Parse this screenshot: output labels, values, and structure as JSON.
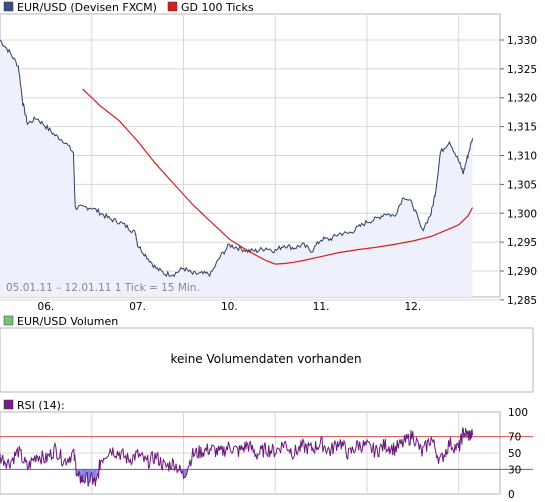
{
  "colors": {
    "price_line": "#2d3f63",
    "price_fill": "#eef0fb",
    "ma_line": "#d42020",
    "rsi_line": "#6a1a7a",
    "rsi_70": "#d85050",
    "rsi_30": "#5a5ad8",
    "rsi_low_fill": "#7a7ae8",
    "grid": "#d8d8d8",
    "frame": "#b5b5b5",
    "volume_swatch": "#7ac27a",
    "rsi_swatch": "#7a1a8a"
  },
  "chart_data": [
    {
      "type": "line",
      "legend": [
        {
          "label": "EUR/USD (Devisen FXCM)",
          "swatch": "#3b4e80"
        },
        {
          "label": "GD 100 Ticks",
          "swatch": "#d42020"
        }
      ],
      "note": "05.01.11 – 12.01.11   1 Tick = 15 Min.",
      "x_tick_labels": [
        "06.",
        "07.",
        "10.",
        "11.",
        "12."
      ],
      "x_tick_positions": [
        0.5,
        1.5,
        2.5,
        3.5,
        4.5
      ],
      "x_range": [
        0,
        5.45
      ],
      "y_range": [
        1.2855,
        1.3345
      ],
      "y_ticks": [
        1.285,
        1.29,
        1.295,
        1.3,
        1.305,
        1.31,
        1.315,
        1.32,
        1.325,
        1.33
      ],
      "y_tick_labels": [
        "1,285",
        "1,290",
        "1,295",
        "1,300",
        "1,305",
        "1,310",
        "1,315",
        "1,320",
        "1,325",
        "1,330"
      ],
      "series": [
        {
          "name": "EUR/USD (Devisen FXCM)",
          "x": [
            0.0,
            0.1,
            0.2,
            0.25,
            0.3,
            0.4,
            0.5,
            0.6,
            0.7,
            0.8,
            0.82,
            0.9,
            1.0,
            1.1,
            1.2,
            1.3,
            1.4,
            1.48,
            1.5,
            1.6,
            1.7,
            1.8,
            1.9,
            2.0,
            2.1,
            2.2,
            2.3,
            2.4,
            2.5,
            2.6,
            2.7,
            2.8,
            2.9,
            3.0,
            3.1,
            3.2,
            3.3,
            3.4,
            3.5,
            3.6,
            3.7,
            3.8,
            3.9,
            4.0,
            4.1,
            4.2,
            4.3,
            4.4,
            4.5,
            4.6,
            4.7,
            4.75,
            4.8,
            4.9,
            5.0,
            5.05,
            5.1,
            5.15
          ],
          "y": [
            1.33,
            1.328,
            1.3255,
            1.319,
            1.3155,
            1.3165,
            1.315,
            1.3135,
            1.3125,
            1.3105,
            1.301,
            1.301,
            1.301,
            1.3,
            1.299,
            1.2985,
            1.2975,
            1.2965,
            1.2945,
            1.2925,
            1.2905,
            1.2895,
            1.2895,
            1.2905,
            1.2895,
            1.2895,
            1.2895,
            1.2925,
            1.2945,
            1.294,
            1.2935,
            1.2935,
            1.294,
            1.2935,
            1.2945,
            1.294,
            1.2945,
            1.2935,
            1.2955,
            1.2955,
            1.2965,
            1.2965,
            1.2975,
            1.2985,
            1.299,
            1.3,
            1.2995,
            1.303,
            1.3015,
            1.297,
            1.3,
            1.304,
            1.3105,
            1.3125,
            1.309,
            1.307,
            1.31,
            1.313
          ]
        },
        {
          "name": "GD 100 Ticks",
          "x": [
            0.9,
            1.1,
            1.3,
            1.5,
            1.7,
            1.9,
            2.1,
            2.3,
            2.5,
            2.7,
            2.9,
            3.0,
            3.1,
            3.2,
            3.3,
            3.5,
            3.7,
            3.9,
            4.1,
            4.3,
            4.5,
            4.7,
            4.9,
            5.0,
            5.1,
            5.15
          ],
          "y": [
            1.3215,
            1.3185,
            1.316,
            1.3125,
            1.3085,
            1.305,
            1.3015,
            1.2985,
            1.2955,
            1.2935,
            1.2918,
            1.2912,
            1.2913,
            1.2915,
            1.2918,
            1.2925,
            1.2932,
            1.2937,
            1.2941,
            1.2946,
            1.2952,
            1.296,
            1.2973,
            1.298,
            1.2995,
            1.301
          ]
        }
      ]
    },
    {
      "type": "bar",
      "legend": [
        {
          "label": "EUR/USD Volumen",
          "swatch": "#7ac27a"
        }
      ],
      "message": "keine Volumendaten vorhanden"
    },
    {
      "type": "line",
      "legend": [
        {
          "label": "RSI (14):",
          "swatch": "#7a1a8a"
        }
      ],
      "y_range": [
        0,
        100
      ],
      "y_ticks": [
        0,
        30,
        50,
        70,
        100
      ],
      "y_tick_labels": [
        "0",
        "30",
        "50",
        "70",
        "100"
      ],
      "levels": [
        70,
        30
      ],
      "series": [
        {
          "name": "RSI (14)",
          "x": [
            0.0,
            0.1,
            0.2,
            0.3,
            0.4,
            0.5,
            0.6,
            0.7,
            0.8,
            0.85,
            0.9,
            1.0,
            1.05,
            1.1,
            1.2,
            1.3,
            1.4,
            1.5,
            1.6,
            1.7,
            1.8,
            1.9,
            2.0,
            2.1,
            2.2,
            2.3,
            2.4,
            2.5,
            2.6,
            2.7,
            2.8,
            2.9,
            3.0,
            3.1,
            3.2,
            3.3,
            3.4,
            3.5,
            3.6,
            3.7,
            3.8,
            3.9,
            4.0,
            4.1,
            4.2,
            4.3,
            4.4,
            4.5,
            4.6,
            4.7,
            4.8,
            4.9,
            5.0,
            5.05,
            5.1,
            5.15
          ],
          "y": [
            45,
            38,
            52,
            32,
            48,
            42,
            55,
            40,
            50,
            20,
            18,
            18,
            12,
            42,
            55,
            50,
            42,
            48,
            38,
            46,
            33,
            38,
            22,
            48,
            52,
            55,
            50,
            58,
            52,
            60,
            48,
            55,
            52,
            62,
            50,
            58,
            55,
            62,
            52,
            65,
            48,
            60,
            58,
            52,
            60,
            55,
            62,
            72,
            50,
            68,
            40,
            62,
            55,
            75,
            72,
            72
          ]
        }
      ]
    }
  ]
}
